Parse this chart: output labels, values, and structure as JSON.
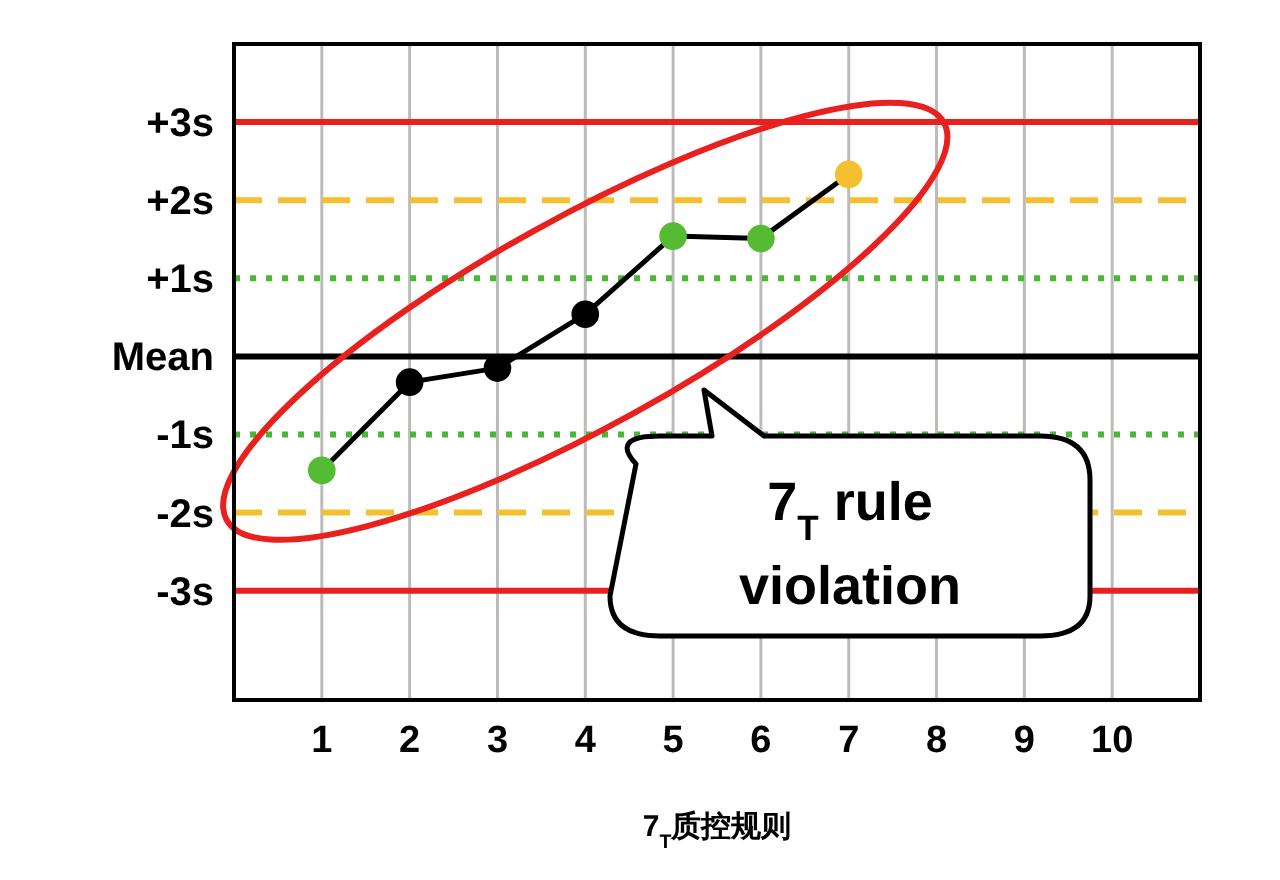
{
  "chart_data": {
    "type": "line",
    "xlabel": "7$_{T}$质控规则",
    "x": [
      1,
      2,
      3,
      4,
      5,
      6,
      7
    ],
    "series": [
      {
        "color": "#000000",
        "colors": [
          "#55bb33",
          "#000000",
          "#000000",
          "#000000",
          "#55bb33",
          "#55bb33",
          "#f5c030"
        ],
        "values": [
          -1.46,
          -0.33,
          -0.15,
          0.54,
          1.54,
          1.51,
          2.33
        ]
      }
    ],
    "xlim": [
      0,
      11
    ],
    "xticks": [
      1,
      2,
      3,
      4,
      5,
      6,
      7,
      8,
      9,
      10
    ],
    "ylim": [
      -4.4,
      4
    ],
    "yticks": [
      {
        "value": -3,
        "label": "-3s"
      },
      {
        "value": -2,
        "label": "-2s"
      },
      {
        "value": -1,
        "label": "-1s"
      },
      {
        "value": 0,
        "label": "Mean"
      },
      {
        "value": 1,
        "label": "+1s"
      },
      {
        "value": 2,
        "label": "+2s"
      },
      {
        "value": 3,
        "label": "+3s"
      }
    ],
    "grid": "x",
    "marker": "circle",
    "line_style": "solid",
    "ref_lines": [
      {
        "axis": "y",
        "value": 3,
        "color": "#e8201e",
        "line_style": "solid"
      },
      {
        "axis": "y",
        "value": 2,
        "color": "#f5c030",
        "line_style": "dashed"
      },
      {
        "axis": "y",
        "value": 1,
        "color": "#44bb33",
        "line_style": "dotted"
      },
      {
        "axis": "y",
        "value": 0,
        "color": "#000000",
        "line_style": "solid"
      },
      {
        "axis": "y",
        "value": -1,
        "color": "#44bb33",
        "line_style": "dotted"
      },
      {
        "axis": "y",
        "value": -2,
        "color": "#f5c030",
        "line_style": "dashed"
      },
      {
        "axis": "y",
        "value": -3,
        "color": "#e8201e",
        "line_style": "solid"
      }
    ],
    "annotations": [
      "7$_{T}$ rule violation"
    ]
  }
}
